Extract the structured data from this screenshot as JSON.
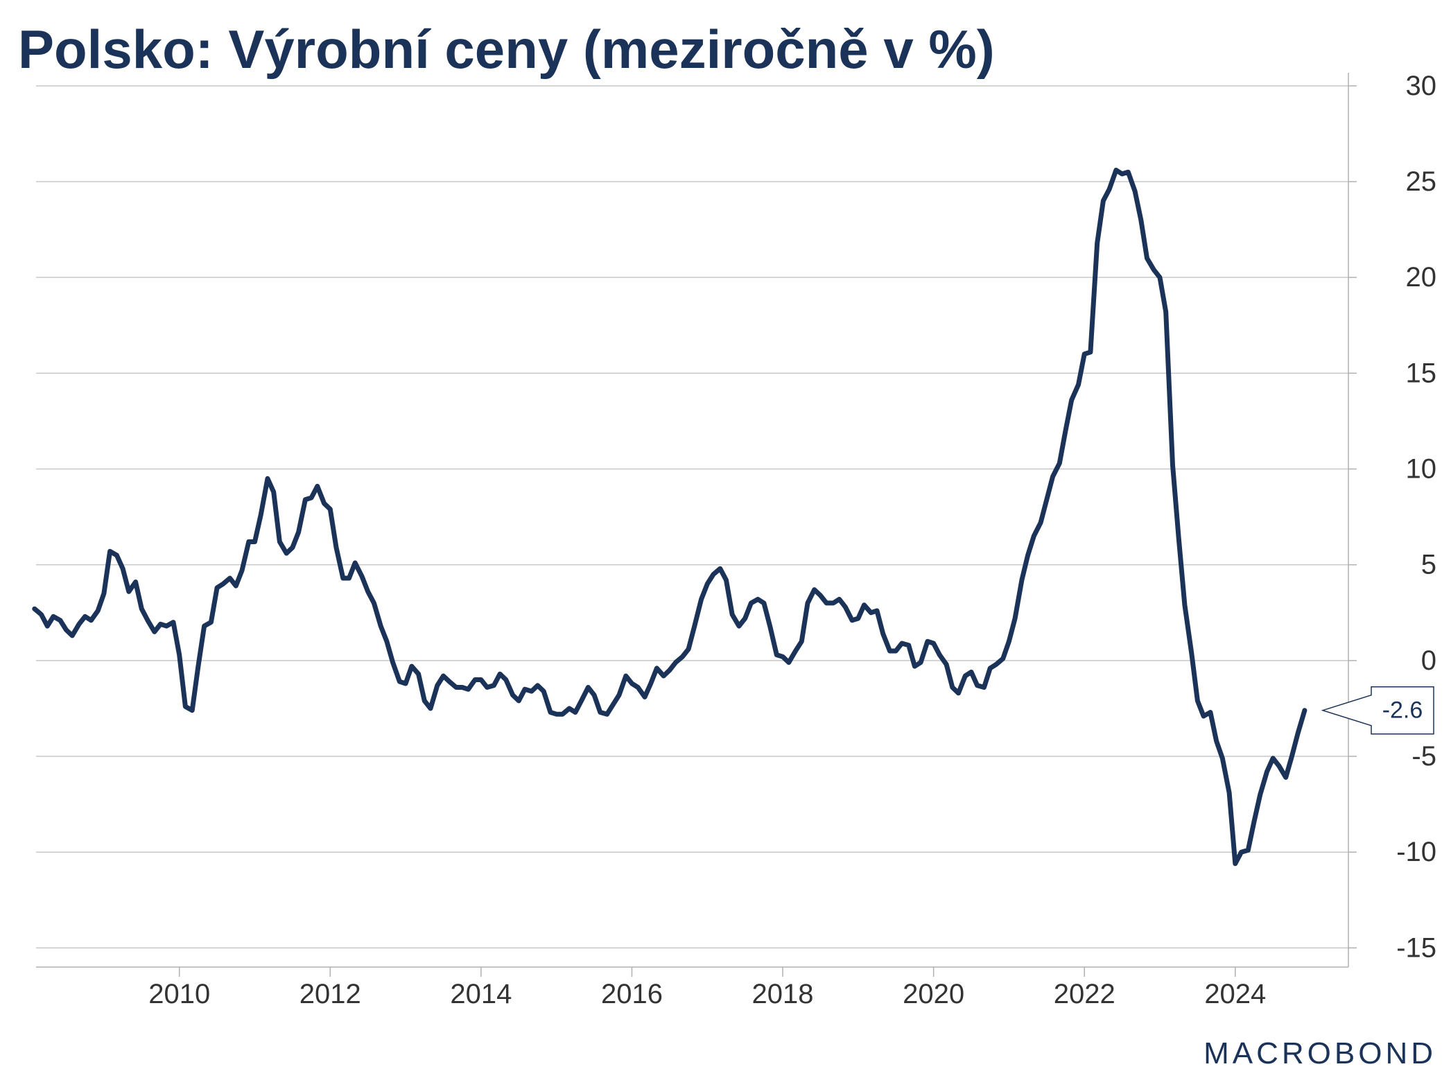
{
  "title": "Polsko: Výrobní ceny (meziročně v %)",
  "brand": "MACROBOND",
  "colors": {
    "line": "#1b3358",
    "grid": "#c8c8c8",
    "axis": "#b0b0b0",
    "text": "#333333"
  },
  "chart_data": {
    "type": "line",
    "title": "Polsko: Výrobní ceny (meziročně v %)",
    "xlabel": "",
    "ylabel": "",
    "y_axis_position": "right",
    "xlim": [
      2008.1,
      2025.5
    ],
    "ylim": [
      -16,
      30.5
    ],
    "x_ticks": [
      2010,
      2012,
      2014,
      2016,
      2018,
      2020,
      2022,
      2024
    ],
    "y_ticks": [
      30,
      25,
      20,
      15,
      10,
      5,
      0,
      -5,
      -10,
      -15
    ],
    "grid": true,
    "last_value_label": "-2.6",
    "series": [
      {
        "name": "",
        "x": [
          2008.08,
          2008.17,
          2008.25,
          2008.33,
          2008.42,
          2008.5,
          2008.58,
          2008.67,
          2008.75,
          2008.83,
          2008.92,
          2009.0,
          2009.08,
          2009.17,
          2009.25,
          2009.33,
          2009.42,
          2009.5,
          2009.58,
          2009.67,
          2009.75,
          2009.83,
          2009.92,
          2010.0,
          2010.08,
          2010.17,
          2010.25,
          2010.33,
          2010.42,
          2010.5,
          2010.58,
          2010.67,
          2010.75,
          2010.83,
          2010.92,
          2011.0,
          2011.08,
          2011.17,
          2011.25,
          2011.33,
          2011.42,
          2011.5,
          2011.58,
          2011.67,
          2011.75,
          2011.83,
          2011.92,
          2012.0,
          2012.08,
          2012.17,
          2012.25,
          2012.33,
          2012.42,
          2012.5,
          2012.58,
          2012.67,
          2012.75,
          2012.83,
          2012.92,
          2013.0,
          2013.08,
          2013.17,
          2013.25,
          2013.33,
          2013.42,
          2013.5,
          2013.58,
          2013.67,
          2013.75,
          2013.83,
          2013.92,
          2014.0,
          2014.08,
          2014.17,
          2014.25,
          2014.33,
          2014.42,
          2014.5,
          2014.58,
          2014.67,
          2014.75,
          2014.83,
          2014.92,
          2015.0,
          2015.08,
          2015.17,
          2015.25,
          2015.33,
          2015.42,
          2015.5,
          2015.58,
          2015.67,
          2015.75,
          2015.83,
          2015.92,
          2016.0,
          2016.08,
          2016.17,
          2016.25,
          2016.33,
          2016.42,
          2016.5,
          2016.58,
          2016.67,
          2016.75,
          2016.83,
          2016.92,
          2017.0,
          2017.08,
          2017.17,
          2017.25,
          2017.33,
          2017.42,
          2017.5,
          2017.58,
          2017.67,
          2017.75,
          2017.83,
          2017.92,
          2018.0,
          2018.08,
          2018.17,
          2018.25,
          2018.33,
          2018.42,
          2018.5,
          2018.58,
          2018.67,
          2018.75,
          2018.83,
          2018.92,
          2019.0,
          2019.08,
          2019.17,
          2019.25,
          2019.33,
          2019.42,
          2019.5,
          2019.58,
          2019.67,
          2019.75,
          2019.83,
          2019.92,
          2020.0,
          2020.08,
          2020.17,
          2020.25,
          2020.33,
          2020.42,
          2020.5,
          2020.58,
          2020.67,
          2020.75,
          2020.83,
          2020.92,
          2021.0,
          2021.08,
          2021.17,
          2021.25,
          2021.33,
          2021.42,
          2021.5,
          2021.58,
          2021.67,
          2021.75,
          2021.83,
          2021.92,
          2022.0,
          2022.08,
          2022.17,
          2022.25,
          2022.33,
          2022.42,
          2022.5,
          2022.58,
          2022.67,
          2022.75,
          2022.83,
          2022.92,
          2023.0,
          2023.08,
          2023.17,
          2023.25,
          2023.33,
          2023.42,
          2023.5,
          2023.58,
          2023.67,
          2023.75,
          2023.83,
          2023.92,
          2024.0,
          2024.08,
          2024.17,
          2024.25,
          2024.33,
          2024.42,
          2024.5,
          2024.58,
          2024.67,
          2024.75,
          2024.83,
          2024.92
        ],
        "values": [
          2.7,
          2.4,
          1.8,
          2.3,
          2.1,
          1.6,
          1.3,
          1.9,
          2.3,
          2.1,
          2.6,
          3.5,
          5.7,
          5.5,
          4.8,
          3.6,
          4.1,
          2.7,
          2.1,
          1.5,
          1.9,
          1.8,
          2.0,
          0.3,
          -2.4,
          -2.6,
          -0.3,
          1.8,
          2.0,
          3.8,
          4.0,
          4.3,
          3.9,
          4.7,
          6.2,
          6.2,
          7.6,
          9.5,
          8.8,
          6.2,
          5.6,
          5.9,
          6.7,
          8.4,
          8.5,
          9.1,
          8.2,
          7.9,
          5.9,
          4.3,
          4.3,
          5.1,
          4.4,
          3.6,
          3.0,
          1.8,
          1.0,
          -0.1,
          -1.1,
          -1.2,
          -0.3,
          -0.7,
          -2.1,
          -2.5,
          -1.3,
          -0.8,
          -1.1,
          -1.4,
          -1.4,
          -1.5,
          -1.0,
          -1.0,
          -1.4,
          -1.3,
          -0.7,
          -1.0,
          -1.8,
          -2.1,
          -1.5,
          -1.6,
          -1.3,
          -1.6,
          -2.7,
          -2.8,
          -2.8,
          -2.5,
          -2.7,
          -2.1,
          -1.4,
          -1.8,
          -2.7,
          -2.8,
          -2.3,
          -1.8,
          -0.8,
          -1.2,
          -1.4,
          -1.9,
          -1.2,
          -0.4,
          -0.8,
          -0.5,
          -0.1,
          0.2,
          0.6,
          1.8,
          3.2,
          4.0,
          4.5,
          4.8,
          4.2,
          2.4,
          1.8,
          2.2,
          3.0,
          3.2,
          3.0,
          1.8,
          0.3,
          0.2,
          -0.1,
          0.5,
          1.0,
          3.0,
          3.7,
          3.4,
          3.0,
          3.0,
          3.2,
          2.8,
          2.1,
          2.2,
          2.9,
          2.5,
          2.6,
          1.4,
          0.5,
          0.5,
          0.9,
          0.8,
          -0.3,
          -0.1,
          1.0,
          0.9,
          0.3,
          -0.2,
          -1.4,
          -1.7,
          -0.8,
          -0.6,
          -1.3,
          -1.4,
          -0.4,
          -0.2,
          0.1,
          1.0,
          2.2,
          4.2,
          5.5,
          6.5,
          7.2,
          8.4,
          9.6,
          10.3,
          12.0,
          13.6,
          14.4,
          16.0,
          16.1,
          21.8,
          24.0,
          24.6,
          25.6,
          25.4,
          25.5,
          24.5,
          23.0,
          21.0,
          20.4,
          20.0,
          18.2,
          10.2,
          6.4,
          2.9,
          0.4,
          -2.1,
          -2.9,
          -2.7,
          -4.2,
          -5.1,
          -6.9,
          -10.6,
          -10.0,
          -9.9,
          -8.4,
          -7.0,
          -5.8,
          -5.1,
          -5.5,
          -6.1,
          -5.0,
          -3.8,
          -2.6
        ]
      }
    ]
  }
}
